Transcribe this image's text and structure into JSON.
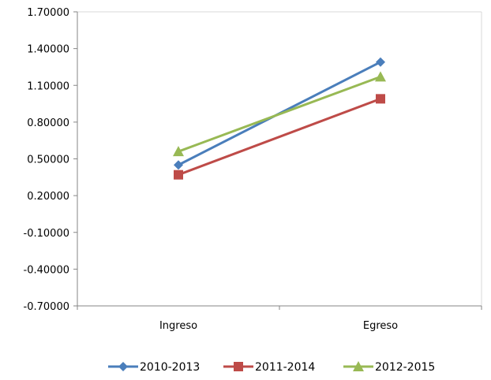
{
  "chart_data": {
    "type": "line",
    "categories": [
      "Ingreso",
      "Egreso"
    ],
    "ylim": [
      -0.7,
      1.7
    ],
    "yticks": [
      -0.7,
      -0.4,
      -0.1,
      0.2,
      0.5,
      0.8,
      1.1,
      1.4,
      1.7
    ],
    "ytick_labels": [
      "-0.70000",
      "-0.40000",
      "-0.10000",
      "0.20000",
      "0.50000",
      "0.80000",
      "1.10000",
      "1.40000",
      "1.70000"
    ],
    "grid": false,
    "legend_position": "bottom",
    "series": [
      {
        "name": "2010-2013",
        "values": [
          0.45,
          1.29
        ],
        "color": "#4a7ebb",
        "marker": "diamond"
      },
      {
        "name": "2011-2014",
        "values": [
          0.37,
          0.99
        ],
        "color": "#be4b48",
        "marker": "square"
      },
      {
        "name": "2012-2015",
        "values": [
          0.56,
          1.17
        ],
        "color": "#98b954",
        "marker": "triangle"
      }
    ]
  }
}
